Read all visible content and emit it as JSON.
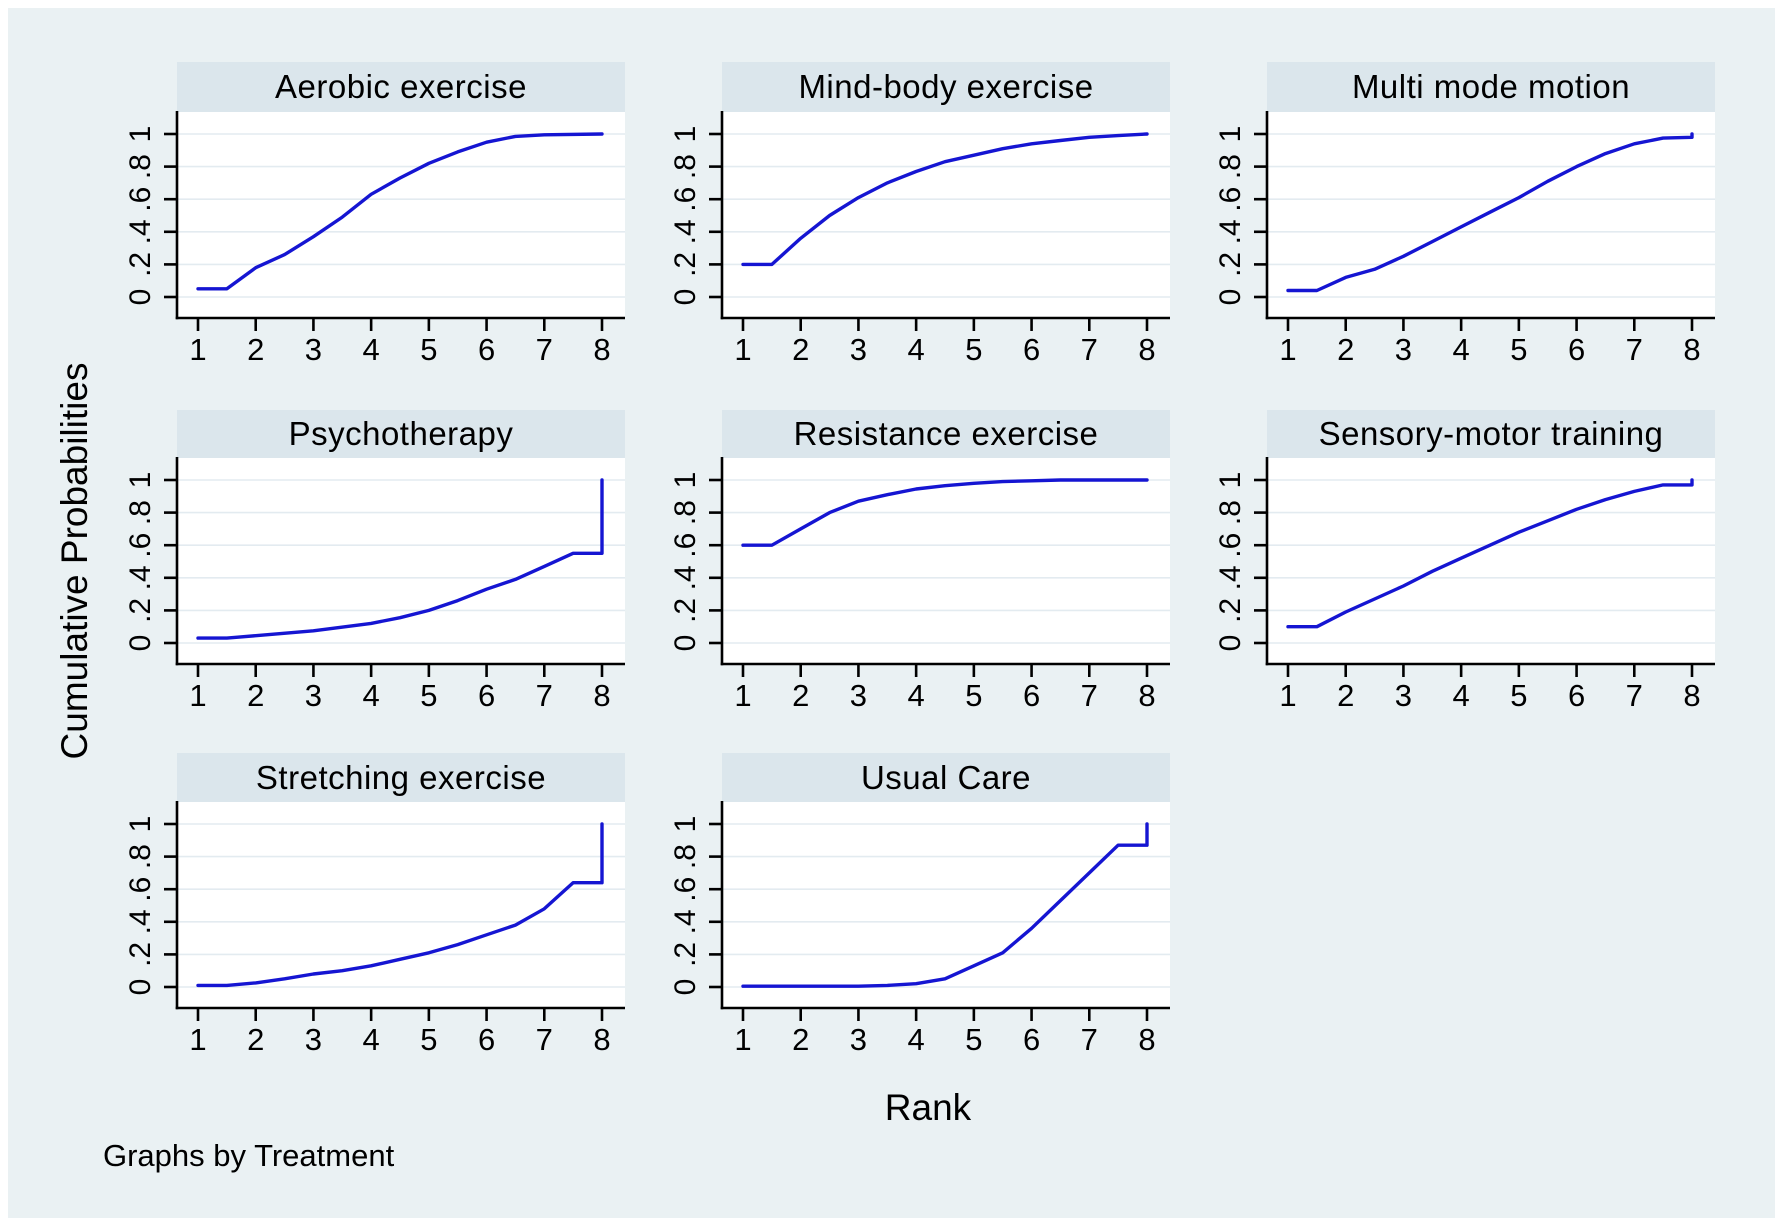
{
  "figure": {
    "ylabel": "Cumulative Probabilities",
    "xlabel": "Rank",
    "note": "Graphs by Treatment"
  },
  "chart_data": {
    "type": "line",
    "title": "",
    "xlabel": "Rank",
    "ylabel": "Cumulative Probabilities",
    "by_note": "Graphs by Treatment",
    "layout": {
      "rows": 3,
      "cols": 3,
      "used_panels": 8,
      "grid": true,
      "legend": "none"
    },
    "x_range": [
      1,
      8
    ],
    "y_range": [
      0,
      1
    ],
    "x_tick_labels": [
      "1",
      "2",
      "3",
      "4",
      "5",
      "6",
      "7",
      "8"
    ],
    "y_tick_labels": [
      "0",
      ".2",
      ".4",
      ".6",
      ".8",
      "1"
    ],
    "y_tick_values": [
      0,
      0.2,
      0.4,
      0.6,
      0.8,
      1
    ],
    "line_color": "#1515d2",
    "strip_color": "#dbe6ec",
    "background_color": "#eaf1f3",
    "gridline_color": "#e3ebf0",
    "panels": [
      {
        "title": "Aerobic exercise",
        "points": [
          [
            1,
            0.05
          ],
          [
            1.5,
            0.05
          ],
          [
            2,
            0.18
          ],
          [
            2.5,
            0.26
          ],
          [
            3,
            0.37
          ],
          [
            3.5,
            0.49
          ],
          [
            4,
            0.63
          ],
          [
            4.5,
            0.73
          ],
          [
            5,
            0.82
          ],
          [
            5.5,
            0.89
          ],
          [
            6,
            0.95
          ],
          [
            6.5,
            0.985
          ],
          [
            7,
            0.995
          ],
          [
            8,
            1.0
          ]
        ]
      },
      {
        "title": "Mind-body exercise",
        "points": [
          [
            1,
            0.2
          ],
          [
            1.5,
            0.2
          ],
          [
            2,
            0.36
          ],
          [
            2.5,
            0.5
          ],
          [
            3,
            0.61
          ],
          [
            3.5,
            0.7
          ],
          [
            4,
            0.77
          ],
          [
            4.5,
            0.83
          ],
          [
            5,
            0.87
          ],
          [
            5.5,
            0.91
          ],
          [
            6,
            0.94
          ],
          [
            6.5,
            0.96
          ],
          [
            7,
            0.98
          ],
          [
            7.5,
            0.99
          ],
          [
            8,
            1.0
          ]
        ]
      },
      {
        "title": "Multi mode motion",
        "points": [
          [
            1,
            0.04
          ],
          [
            1.5,
            0.04
          ],
          [
            2,
            0.12
          ],
          [
            2.5,
            0.17
          ],
          [
            3,
            0.25
          ],
          [
            3.5,
            0.34
          ],
          [
            4,
            0.43
          ],
          [
            4.5,
            0.52
          ],
          [
            5,
            0.61
          ],
          [
            5.5,
            0.71
          ],
          [
            6,
            0.8
          ],
          [
            6.5,
            0.88
          ],
          [
            7,
            0.94
          ],
          [
            7.5,
            0.975
          ],
          [
            8,
            0.98
          ],
          [
            8,
            1.0
          ]
        ]
      },
      {
        "title": "Psychotherapy",
        "points": [
          [
            1,
            0.03
          ],
          [
            1.5,
            0.03
          ],
          [
            2,
            0.045
          ],
          [
            3,
            0.075
          ],
          [
            4,
            0.12
          ],
          [
            4.5,
            0.155
          ],
          [
            5,
            0.2
          ],
          [
            5.5,
            0.26
          ],
          [
            6,
            0.33
          ],
          [
            6.5,
            0.39
          ],
          [
            7,
            0.47
          ],
          [
            7.5,
            0.55
          ],
          [
            8,
            0.55
          ],
          [
            8,
            1.0
          ]
        ]
      },
      {
        "title": "Resistance exercise",
        "points": [
          [
            1,
            0.6
          ],
          [
            1.5,
            0.6
          ],
          [
            2,
            0.7
          ],
          [
            2.5,
            0.8
          ],
          [
            3,
            0.87
          ],
          [
            3.5,
            0.91
          ],
          [
            4,
            0.945
          ],
          [
            4.5,
            0.965
          ],
          [
            5,
            0.98
          ],
          [
            5.5,
            0.99
          ],
          [
            6,
            0.995
          ],
          [
            6.5,
            1.0
          ],
          [
            8,
            1.0
          ]
        ]
      },
      {
        "title": "Sensory-motor training",
        "points": [
          [
            1,
            0.1
          ],
          [
            1.5,
            0.1
          ],
          [
            2,
            0.19
          ],
          [
            2.5,
            0.27
          ],
          [
            3,
            0.35
          ],
          [
            3.5,
            0.44
          ],
          [
            4,
            0.52
          ],
          [
            4.5,
            0.6
          ],
          [
            5,
            0.68
          ],
          [
            5.5,
            0.75
          ],
          [
            6,
            0.82
          ],
          [
            6.5,
            0.88
          ],
          [
            7,
            0.93
          ],
          [
            7.5,
            0.97
          ],
          [
            8,
            0.97
          ],
          [
            8,
            1.0
          ]
        ]
      },
      {
        "title": "Stretching exercise",
        "points": [
          [
            1,
            0.01
          ],
          [
            1.5,
            0.01
          ],
          [
            2,
            0.025
          ],
          [
            2.5,
            0.05
          ],
          [
            3,
            0.08
          ],
          [
            3.5,
            0.1
          ],
          [
            4,
            0.13
          ],
          [
            4.5,
            0.17
          ],
          [
            5,
            0.21
          ],
          [
            5.5,
            0.26
          ],
          [
            6,
            0.32
          ],
          [
            6.5,
            0.38
          ],
          [
            7,
            0.48
          ],
          [
            7.5,
            0.64
          ],
          [
            8,
            0.64
          ],
          [
            8,
            1.0
          ]
        ]
      },
      {
        "title": "Usual Care",
        "points": [
          [
            1,
            0.005
          ],
          [
            2,
            0.005
          ],
          [
            3,
            0.005
          ],
          [
            3.5,
            0.01
          ],
          [
            4,
            0.02
          ],
          [
            4.5,
            0.05
          ],
          [
            5,
            0.13
          ],
          [
            5.5,
            0.21
          ],
          [
            6,
            0.36
          ],
          [
            6.5,
            0.53
          ],
          [
            7,
            0.7
          ],
          [
            7.5,
            0.87
          ],
          [
            8,
            0.87
          ],
          [
            8,
            1.0
          ]
        ]
      }
    ]
  }
}
